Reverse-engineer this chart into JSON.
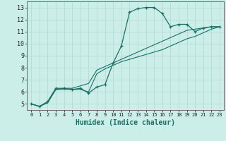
{
  "title": "",
  "xlabel": "Humidex (Indice chaleur)",
  "background_color": "#cceee8",
  "grid_color": "#b8d8d4",
  "line_color": "#1a7068",
  "xlim": [
    -0.5,
    23.5
  ],
  "ylim": [
    4.5,
    13.5
  ],
  "xtick_labels": [
    "0",
    "1",
    "2",
    "3",
    "4",
    "5",
    "6",
    "7",
    "8",
    "9",
    "10",
    "11",
    "12",
    "13",
    "14",
    "15",
    "16",
    "17",
    "18",
    "19",
    "20",
    "21",
    "22",
    "23"
  ],
  "ytick_labels": [
    "5",
    "6",
    "7",
    "8",
    "9",
    "10",
    "11",
    "12",
    "13"
  ],
  "lines": [
    {
      "x": [
        0,
        1,
        2,
        3,
        4,
        5,
        6,
        7,
        8,
        9,
        10,
        11,
        12,
        13,
        14,
        15,
        16,
        17,
        18,
        19,
        20,
        21,
        22,
        23
      ],
      "y": [
        5.0,
        4.8,
        5.2,
        6.3,
        6.3,
        6.2,
        6.3,
        5.9,
        6.4,
        6.6,
        8.4,
        9.8,
        12.6,
        12.9,
        13.0,
        13.0,
        12.5,
        11.4,
        11.6,
        11.6,
        11.0,
        11.3,
        11.4,
        11.4
      ],
      "marker": true
    },
    {
      "x": [
        0,
        1,
        2,
        3,
        4,
        5,
        6,
        7,
        8,
        9,
        10,
        11,
        12,
        13,
        14,
        15,
        16,
        17,
        18,
        19,
        20,
        21,
        22,
        23
      ],
      "y": [
        5.0,
        4.8,
        5.1,
        6.2,
        6.2,
        6.2,
        6.2,
        6.0,
        7.5,
        7.9,
        8.2,
        8.5,
        8.7,
        8.9,
        9.1,
        9.3,
        9.5,
        9.8,
        10.1,
        10.4,
        10.6,
        10.9,
        11.2,
        11.4
      ],
      "marker": false
    },
    {
      "x": [
        0,
        1,
        2,
        3,
        4,
        5,
        6,
        7,
        8,
        9,
        10,
        11,
        12,
        13,
        14,
        15,
        16,
        17,
        18,
        19,
        20,
        21,
        22,
        23
      ],
      "y": [
        5.0,
        4.8,
        5.1,
        6.2,
        6.3,
        6.3,
        6.5,
        6.7,
        7.8,
        8.1,
        8.4,
        8.7,
        9.0,
        9.3,
        9.6,
        9.9,
        10.2,
        10.5,
        10.8,
        11.1,
        11.2,
        11.3,
        11.4,
        11.4
      ],
      "marker": false
    }
  ]
}
